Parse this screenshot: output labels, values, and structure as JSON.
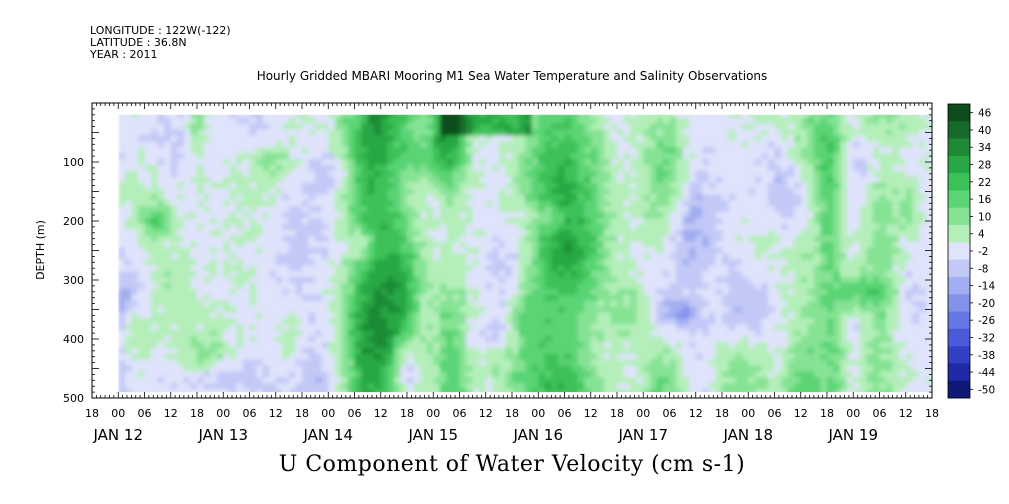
{
  "header": {
    "longitude": "LONGITUDE : 122W(-122)",
    "latitude": "LATITUDE : 36.8N",
    "year": "YEAR : 2011"
  },
  "chart_data": {
    "type": "heatmap",
    "title": "Hourly Gridded MBARI Mooring M1 Sea Water Temperature and Salinity Observations",
    "xlabel": "U Component of Water Velocity (cm s-1)",
    "ylabel": "DEPTH (m)",
    "y_reversed": true,
    "ylim": [
      500,
      0
    ],
    "y_ticks": [
      100,
      200,
      300,
      400,
      500
    ],
    "x_range_hours": {
      "start": "JAN 11 18:00",
      "end": "JAN 19 18:00"
    },
    "x_hour_ticks": [
      "18",
      "00",
      "06",
      "12",
      "18",
      "00",
      "06",
      "12",
      "18",
      "00",
      "06",
      "12",
      "18",
      "00",
      "06",
      "12",
      "18",
      "00",
      "06",
      "12",
      "18",
      "00",
      "06",
      "12",
      "18",
      "00",
      "06",
      "12",
      "18",
      "00",
      "06",
      "12",
      "18"
    ],
    "x_day_labels": [
      "JAN 12",
      "JAN 13",
      "JAN 14",
      "JAN 15",
      "JAN 16",
      "JAN 17",
      "JAN 18",
      "JAN 19"
    ],
    "data_extent": {
      "x_start": "JAN 12 00:00",
      "x_end": "JAN 19 18:00",
      "depth_top": 20,
      "depth_bottom": 490
    },
    "colorbar": {
      "levels": [
        46,
        40,
        34,
        28,
        22,
        16,
        10,
        4,
        -2,
        -8,
        -14,
        -20,
        -26,
        -32,
        -38,
        -44,
        -50
      ],
      "colors": [
        "#0d4d1d",
        "#176b2a",
        "#1f8a36",
        "#27a844",
        "#3cc158",
        "#5ad474",
        "#86e394",
        "#b4efba",
        "#dfe3fb",
        "#c2c9f7",
        "#a3adf1",
        "#8592ea",
        "#6676e2",
        "#4a5ad8",
        "#3240c4",
        "#1f2aa4",
        "#101878"
      ]
    },
    "description_values": "U velocity mostly between -20 and +30 cm s-1; alternating negative (blue) and positive (green) vertical bands across the 8-day record"
  }
}
